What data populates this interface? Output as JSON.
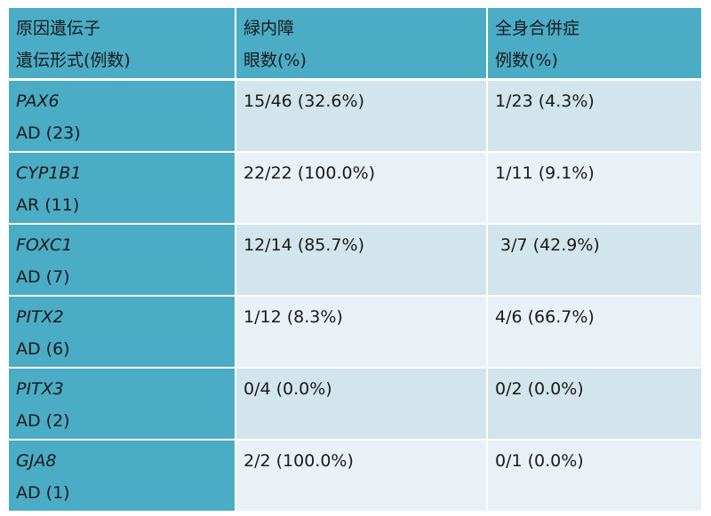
{
  "header": {
    "col1": {
      "line1": "原因遺伝子",
      "line2": "遺伝形式(例数)"
    },
    "col2": {
      "line1": "緑内障",
      "line2": "眼数(%)"
    },
    "col3": {
      "line1": "全身合併症",
      "line2": "例数(%)"
    }
  },
  "rows": [
    {
      "gene": "PAX6",
      "inheritance": "AD (23)",
      "glaucoma": "15/46 (32.6%)",
      "systemic": "1/23 (4.3%)"
    },
    {
      "gene": "CYP1B1",
      "inheritance": "AR (11)",
      "glaucoma": "22/22 (100.0%)",
      "systemic": "1/11 (9.1%)"
    },
    {
      "gene": "FOXC1",
      "inheritance": "AD (7)",
      "glaucoma": "12/14 (85.7%)",
      "systemic": " 3/7 (42.9%)"
    },
    {
      "gene": "PITX2",
      "inheritance": "AD (6)",
      "glaucoma": "1/12 (8.3%)",
      "systemic": "4/6 (66.7%)"
    },
    {
      "gene": "PITX3",
      "inheritance": "AD (2)",
      "glaucoma": "0/4 (0.0%)",
      "systemic": "0/2 (0.0%)"
    },
    {
      "gene": "GJA8",
      "inheritance": "AD (1)",
      "glaucoma": "2/2 (100.0%)",
      "systemic": "0/1 (0.0%)"
    }
  ],
  "colors": {
    "header_bg": "#4bacc6",
    "row_odd_bg": "#d2e4ec",
    "row_even_bg": "#eaf1f6"
  }
}
